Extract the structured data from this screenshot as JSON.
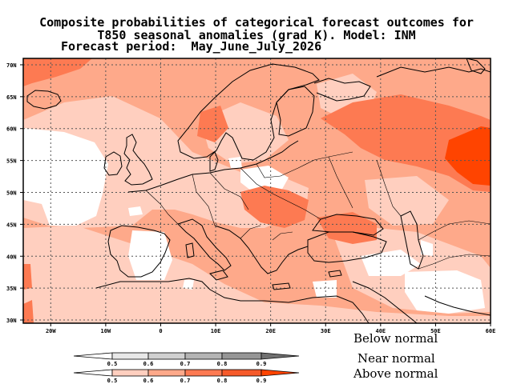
{
  "title": {
    "line1": "Composite probabilities of categorical forecast outcomes for",
    "line2": "T850 seasonal anomalies (grad K). Model: INM",
    "line3": "Forecast period:  May_June_July_2026"
  },
  "map": {
    "lat_labels": [
      "70N",
      "65N",
      "60N",
      "55N",
      "50N",
      "45N",
      "40N",
      "35N",
      "30N"
    ],
    "lon_labels": [
      "20W",
      "10W",
      "0",
      "10E",
      "20E",
      "30E",
      "40E",
      "50E",
      "60E"
    ],
    "lon_range": [
      -25,
      60
    ],
    "lat_range": [
      29.5,
      71
    ]
  },
  "legend": {
    "below_label": "Below normal",
    "near_label": "Near normal",
    "above_label": "Above normal",
    "below_ticks": [
      "0.5",
      "0.6",
      "0.7",
      "0.8",
      "0.9"
    ],
    "above_ticks": [
      "0.5",
      "0.6",
      "0.7",
      "0.8",
      "0.9"
    ],
    "below_colors": [
      "#ffffff",
      "#e8e8e8",
      "#d0d0d0",
      "#b4b4b4",
      "#969696",
      "#707070"
    ],
    "above_colors": [
      "#ffffff",
      "#ffcfbf",
      "#fea98a",
      "#fd7a52",
      "#f65a2a",
      "#ff4400"
    ]
  },
  "colors": {
    "c1": "#ffcfbf",
    "c2": "#fea98a",
    "c3": "#fd7a52",
    "c4": "#ff4400"
  }
}
